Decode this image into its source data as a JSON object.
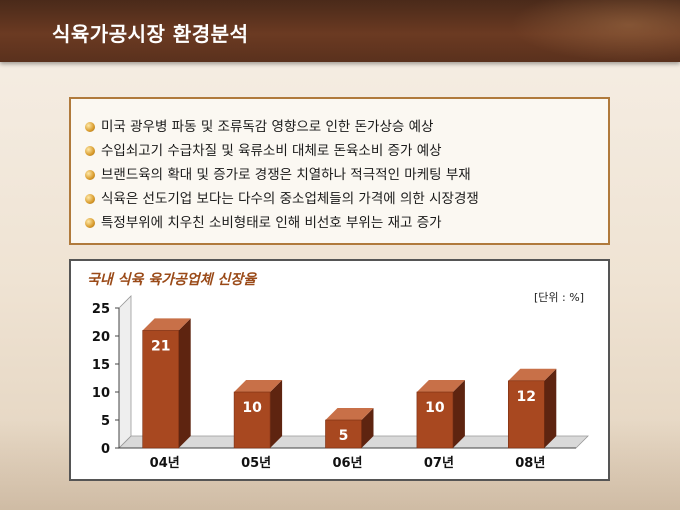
{
  "header": {
    "title": "식육가공시장 환경분석"
  },
  "bullets": [
    "미국 광우병 파동 및 조류독감 영향으로 인한 돈가상승 예상",
    "수입쇠고기 수급차질 및 육류소비 대체로 돈육소비 증가 예상",
    "브랜드육의 확대 및 증가로 경쟁은 치열하나 적극적인 마케팅 부재",
    "식육은 선도기업 보다는 다수의 중소업체들의 가격에 의한 시장경쟁",
    "특정부위에 치우친 소비형태로 인해 비선호 부위는 재고 증가"
  ],
  "chart_data": {
    "type": "bar",
    "title": "국내 식육 육가공업체 신장율",
    "unit": "[단위 : %]",
    "categories": [
      "04년",
      "05년",
      "06년",
      "07년",
      "08년"
    ],
    "values": [
      21,
      10,
      5,
      10,
      12
    ],
    "ylim": [
      0,
      25
    ],
    "yticks": [
      0,
      5,
      10,
      15,
      20,
      25
    ],
    "grid": false,
    "bar_color": "#a84820"
  }
}
